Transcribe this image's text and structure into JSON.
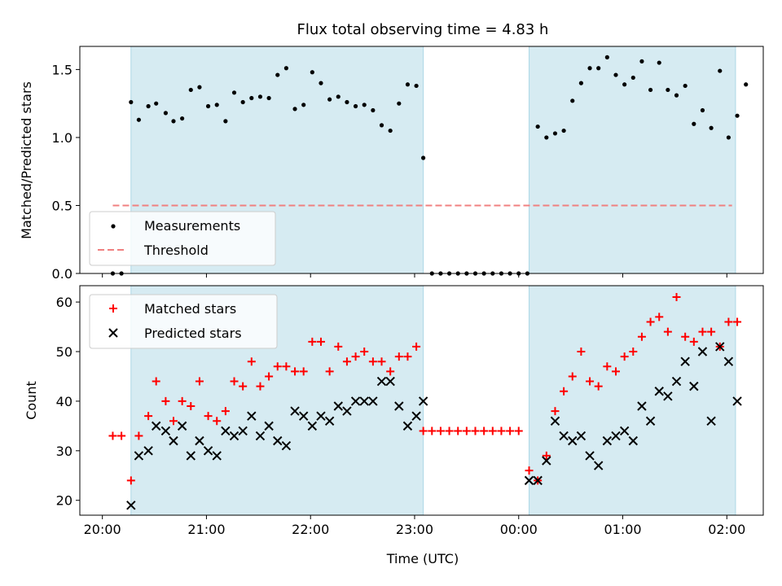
{
  "figure": {
    "title": "Flux total observing time = 4.83 h",
    "xlabel": "Time (UTC)",
    "xticks": [
      {
        "t": 0,
        "label": "20:00"
      },
      {
        "t": 60,
        "label": "21:00"
      },
      {
        "t": 120,
        "label": "22:00"
      },
      {
        "t": 180,
        "label": "23:00"
      },
      {
        "t": 240,
        "label": "00:00"
      },
      {
        "t": 300,
        "label": "01:00"
      },
      {
        "t": 360,
        "label": "02:00"
      }
    ],
    "shade_color": "#add8e6",
    "shaded_intervals": [
      [
        16.5,
        185
      ],
      [
        246,
        365
      ]
    ]
  },
  "chart_data": [
    {
      "type": "scatter",
      "ylabel": "Matched/Predicted stars",
      "x_unit": "minutes after 20:00 UTC",
      "xlim": [
        -13,
        381
      ],
      "ylim": [
        0,
        1.67
      ],
      "yticks": [
        0.0,
        0.5,
        1.0,
        1.5
      ],
      "ytick_labels": [
        "0.0",
        "0.5",
        "1.0",
        "1.5"
      ],
      "legend": {
        "position": "lower-left",
        "entries": [
          "Measurements",
          "Threshold"
        ]
      },
      "threshold": {
        "name": "Threshold",
        "y": 0.5,
        "x_range": [
          6,
          363
        ],
        "color": "#f08080",
        "style": "dashed"
      },
      "series": [
        {
          "name": "Measurements",
          "color": "#000000",
          "marker": "dot",
          "points": [
            [
              6,
              0
            ],
            [
              11,
              0
            ],
            [
              16.5,
              1.26
            ],
            [
              21,
              1.13
            ],
            [
              26.5,
              1.23
            ],
            [
              31,
              1.25
            ],
            [
              36.5,
              1.18
            ],
            [
              41,
              1.12
            ],
            [
              46,
              1.14
            ],
            [
              51,
              1.35
            ],
            [
              56,
              1.37
            ],
            [
              61,
              1.23
            ],
            [
              66,
              1.24
            ],
            [
              71,
              1.12
            ],
            [
              76,
              1.33
            ],
            [
              81,
              1.26
            ],
            [
              86,
              1.29
            ],
            [
              91,
              1.3
            ],
            [
              96,
              1.29
            ],
            [
              101,
              1.46
            ],
            [
              106,
              1.51
            ],
            [
              111,
              1.21
            ],
            [
              116,
              1.24
            ],
            [
              121,
              1.48
            ],
            [
              126,
              1.4
            ],
            [
              131,
              1.28
            ],
            [
              136,
              1.3
            ],
            [
              141,
              1.26
            ],
            [
              146,
              1.23
            ],
            [
              151,
              1.24
            ],
            [
              156,
              1.2
            ],
            [
              161,
              1.09
            ],
            [
              166,
              1.05
            ],
            [
              171,
              1.25
            ],
            [
              176,
              1.39
            ],
            [
              181,
              1.38
            ],
            [
              185,
              0.85
            ],
            [
              190,
              0
            ],
            [
              195,
              0
            ],
            [
              200,
              0
            ],
            [
              205,
              0
            ],
            [
              210,
              0
            ],
            [
              215,
              0
            ],
            [
              220,
              0
            ],
            [
              225,
              0
            ],
            [
              230,
              0
            ],
            [
              235,
              0
            ],
            [
              240,
              0
            ],
            [
              245,
              0
            ],
            [
              251,
              1.08
            ],
            [
              256,
              1.0
            ],
            [
              261,
              1.03
            ],
            [
              266,
              1.05
            ],
            [
              271,
              1.27
            ],
            [
              276,
              1.4
            ],
            [
              281,
              1.51
            ],
            [
              286,
              1.51
            ],
            [
              291,
              1.59
            ],
            [
              296,
              1.46
            ],
            [
              301,
              1.39
            ],
            [
              306,
              1.44
            ],
            [
              311,
              1.56
            ],
            [
              316,
              1.35
            ],
            [
              321,
              1.55
            ],
            [
              326,
              1.35
            ],
            [
              331,
              1.31
            ],
            [
              336,
              1.38
            ],
            [
              341,
              1.1
            ],
            [
              346,
              1.2
            ],
            [
              351,
              1.07
            ],
            [
              356,
              1.49
            ],
            [
              361,
              1.0
            ],
            [
              366,
              1.16
            ],
            [
              371,
              1.39
            ]
          ]
        }
      ]
    },
    {
      "type": "scatter",
      "ylabel": "Count",
      "x_unit": "minutes after 20:00 UTC",
      "xlim": [
        -13,
        381
      ],
      "ylim": [
        17,
        63.3
      ],
      "yticks": [
        20,
        30,
        40,
        50,
        60
      ],
      "ytick_labels": [
        "20",
        "30",
        "40",
        "50",
        "60"
      ],
      "legend": {
        "position": "top-left",
        "entries": [
          "Matched stars",
          "Predicted stars"
        ]
      },
      "series": [
        {
          "name": "Matched stars",
          "color": "#ff0000",
          "marker": "plus",
          "points": [
            [
              6,
              33
            ],
            [
              11,
              33
            ],
            [
              16.5,
              24
            ],
            [
              21,
              33
            ],
            [
              26.5,
              37
            ],
            [
              31,
              44
            ],
            [
              36.5,
              40
            ],
            [
              41,
              36
            ],
            [
              46,
              40
            ],
            [
              51,
              39
            ],
            [
              56,
              44
            ],
            [
              61,
              37
            ],
            [
              66,
              36
            ],
            [
              71,
              38
            ],
            [
              76,
              44
            ],
            [
              81,
              43
            ],
            [
              86,
              48
            ],
            [
              91,
              43
            ],
            [
              96,
              45
            ],
            [
              101,
              47
            ],
            [
              106,
              47
            ],
            [
              111,
              46
            ],
            [
              116,
              46
            ],
            [
              121,
              52
            ],
            [
              126,
              52
            ],
            [
              131,
              46
            ],
            [
              136,
              51
            ],
            [
              141,
              48
            ],
            [
              146,
              49
            ],
            [
              151,
              50
            ],
            [
              156,
              48
            ],
            [
              161,
              48
            ],
            [
              166,
              46
            ],
            [
              171,
              49
            ],
            [
              176,
              49
            ],
            [
              181,
              51
            ],
            [
              185,
              34
            ],
            [
              190,
              34
            ],
            [
              195,
              34
            ],
            [
              200,
              34
            ],
            [
              205,
              34
            ],
            [
              210,
              34
            ],
            [
              215,
              34
            ],
            [
              220,
              34
            ],
            [
              225,
              34
            ],
            [
              230,
              34
            ],
            [
              235,
              34
            ],
            [
              240,
              34
            ],
            [
              246,
              26
            ],
            [
              251,
              24
            ],
            [
              256,
              29
            ],
            [
              261,
              38
            ],
            [
              266,
              42
            ],
            [
              271,
              45
            ],
            [
              276,
              50
            ],
            [
              281,
              44
            ],
            [
              286,
              43
            ],
            [
              291,
              47
            ],
            [
              296,
              46
            ],
            [
              301,
              49
            ],
            [
              306,
              50
            ],
            [
              311,
              53
            ],
            [
              316,
              56
            ],
            [
              321,
              57
            ],
            [
              326,
              54
            ],
            [
              331,
              61
            ],
            [
              336,
              53
            ],
            [
              341,
              52
            ],
            [
              346,
              54
            ],
            [
              351,
              54
            ],
            [
              356,
              51
            ],
            [
              361,
              56
            ],
            [
              366,
              56
            ]
          ]
        },
        {
          "name": "Predicted stars",
          "color": "#000000",
          "marker": "x",
          "points": [
            [
              16.5,
              19
            ],
            [
              21,
              29
            ],
            [
              26.5,
              30
            ],
            [
              31,
              35
            ],
            [
              36.5,
              34
            ],
            [
              41,
              32
            ],
            [
              46,
              35
            ],
            [
              51,
              29
            ],
            [
              56,
              32
            ],
            [
              61,
              30
            ],
            [
              66,
              29
            ],
            [
              71,
              34
            ],
            [
              76,
              33
            ],
            [
              81,
              34
            ],
            [
              86,
              37
            ],
            [
              91,
              33
            ],
            [
              96,
              35
            ],
            [
              101,
              32
            ],
            [
              106,
              31
            ],
            [
              111,
              38
            ],
            [
              116,
              37
            ],
            [
              121,
              35
            ],
            [
              126,
              37
            ],
            [
              131,
              36
            ],
            [
              136,
              39
            ],
            [
              141,
              38
            ],
            [
              146,
              40
            ],
            [
              151,
              40
            ],
            [
              156,
              40
            ],
            [
              161,
              44
            ],
            [
              166,
              44
            ],
            [
              171,
              39
            ],
            [
              176,
              35
            ],
            [
              181,
              37
            ],
            [
              185,
              40
            ],
            [
              246,
              24
            ],
            [
              251,
              24
            ],
            [
              256,
              28
            ],
            [
              261,
              36
            ],
            [
              266,
              33
            ],
            [
              271,
              32
            ],
            [
              276,
              33
            ],
            [
              281,
              29
            ],
            [
              286,
              27
            ],
            [
              291,
              32
            ],
            [
              296,
              33
            ],
            [
              301,
              34
            ],
            [
              306,
              32
            ],
            [
              311,
              39
            ],
            [
              316,
              36
            ],
            [
              321,
              42
            ],
            [
              326,
              41
            ],
            [
              331,
              44
            ],
            [
              336,
              48
            ],
            [
              341,
              43
            ],
            [
              346,
              50
            ],
            [
              351,
              36
            ],
            [
              356,
              51
            ],
            [
              361,
              48
            ],
            [
              366,
              40
            ]
          ]
        }
      ]
    }
  ]
}
